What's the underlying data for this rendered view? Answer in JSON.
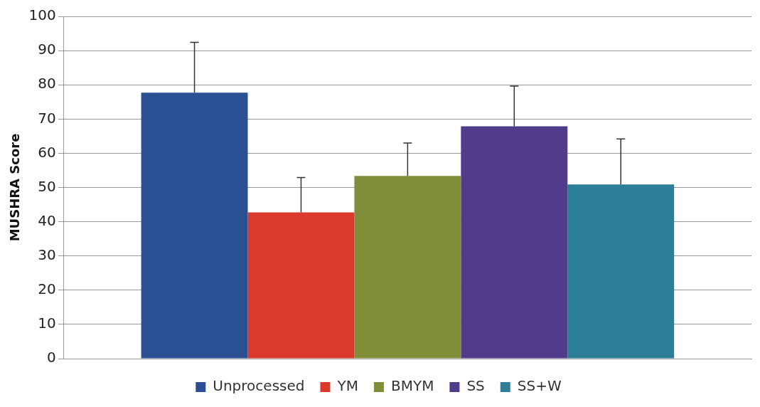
{
  "chart_data": {
    "type": "bar",
    "ylabel": "MUSHRA Score",
    "categories": [
      null
    ],
    "series": [
      {
        "name": "Unprocessed",
        "color": "#2b4f93",
        "values": [
          77.7
        ],
        "errors": [
          14.7
        ]
      },
      {
        "name": "YM",
        "color": "#d93a2c",
        "values": [
          42.7
        ],
        "errors": [
          10.2
        ]
      },
      {
        "name": "BMYM",
        "color": "#808e3a",
        "values": [
          53.4
        ],
        "errors": [
          9.6
        ]
      },
      {
        "name": "SS",
        "color": "#503c8b",
        "values": [
          67.9
        ],
        "errors": [
          11.7
        ]
      },
      {
        "name": "SS+W",
        "color": "#2c7d96",
        "values": [
          50.9
        ],
        "errors": [
          13.3
        ]
      }
    ],
    "ylim": [
      0,
      100
    ],
    "yticks": [
      0,
      10,
      20,
      30,
      40,
      50,
      60,
      70,
      80,
      90,
      100
    ],
    "grid": "y",
    "legend": "bottom"
  }
}
